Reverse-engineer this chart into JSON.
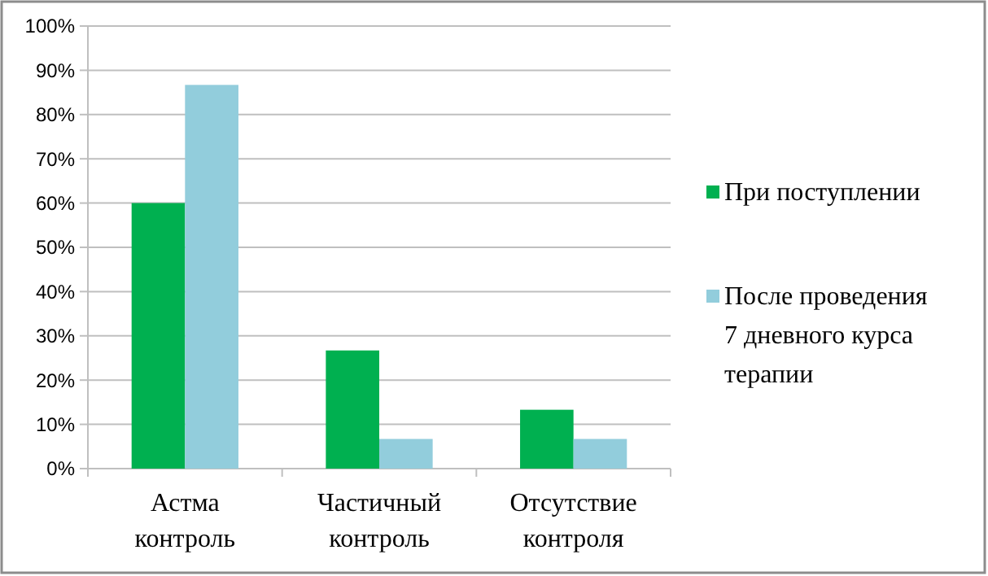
{
  "chart_data": {
    "type": "bar",
    "categories": [
      "Астма контроль",
      "Частичный контроль",
      "Отсутствие контроля"
    ],
    "series": [
      {
        "name": "При поступлении",
        "color": "#00b050",
        "values": [
          60,
          26.7,
          13.3
        ]
      },
      {
        "name": "После проведения 7 дневного курса терапии",
        "color": "#92cddc",
        "values": [
          86.7,
          6.7,
          6.7
        ]
      }
    ],
    "ylim": [
      0,
      100
    ],
    "yticks": [
      {
        "value": 0,
        "label": "0%"
      },
      {
        "value": 10,
        "label": "10%"
      },
      {
        "value": 20,
        "label": "20%"
      },
      {
        "value": 30,
        "label": "30%"
      },
      {
        "value": 40,
        "label": "40%"
      },
      {
        "value": 50,
        "label": "50%"
      },
      {
        "value": 60,
        "label": "60%"
      },
      {
        "value": 70,
        "label": "70%"
      },
      {
        "value": 80,
        "label": "80%"
      },
      {
        "value": 90,
        "label": "90%"
      },
      {
        "value": 100,
        "label": "100%"
      }
    ],
    "grid": "y",
    "legend": "right"
  }
}
